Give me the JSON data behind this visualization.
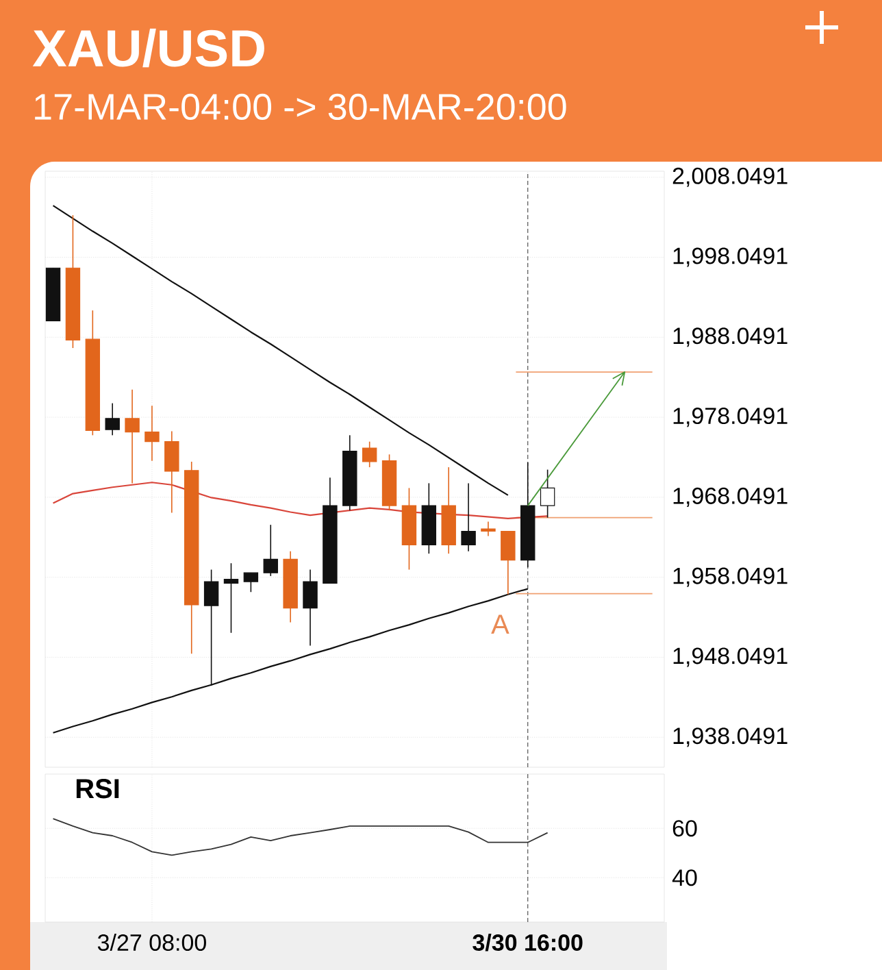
{
  "chart_data": [
    {
      "type": "candlestick",
      "title": "XAU/USD",
      "subtitle": "17-MAR-04:00 -> 30-MAR-20:00",
      "categories": [
        null,
        null,
        null,
        null,
        null,
        "3/27 08:00",
        null,
        null,
        null,
        null,
        null,
        null,
        null,
        null,
        null,
        null,
        null,
        null,
        null,
        null,
        null,
        null,
        null,
        null,
        "3/30 16:00",
        null
      ],
      "ohlc": [
        [
          1990.1,
          1996.7,
          1990.1,
          1996.7
        ],
        [
          1996.7,
          2003.3,
          1986.7,
          1987.7
        ],
        [
          1987.8,
          1991.4,
          1975.8,
          1976.4
        ],
        [
          1976.5,
          1979.8,
          1975.8,
          1977.9
        ],
        [
          1977.9,
          1981.5,
          1969.8,
          1976.2
        ],
        [
          1976.2,
          1979.5,
          1972.6,
          1975.0
        ],
        [
          1975.0,
          1976.3,
          1966.1,
          1971.3
        ],
        [
          1971.4,
          1972.5,
          1948.5,
          1954.6
        ],
        [
          1954.5,
          1959.0,
          1944.5,
          1957.5
        ],
        [
          1957.3,
          1959.8,
          1951.1,
          1957.8
        ],
        [
          1957.5,
          1958.6,
          1956.2,
          1958.6
        ],
        [
          1958.6,
          1964.6,
          1958.2,
          1960.3
        ],
        [
          1960.3,
          1961.3,
          1952.4,
          1954.2
        ],
        [
          1954.2,
          1959.0,
          1949.5,
          1957.5
        ],
        [
          1957.3,
          1970.5,
          1957.3,
          1967.0
        ],
        [
          1967.0,
          1975.8,
          1966.4,
          1973.8
        ],
        [
          1974.2,
          1975.0,
          1971.8,
          1972.5
        ],
        [
          1972.6,
          1973.4,
          1966.4,
          1967.0
        ],
        [
          1967.0,
          1969.2,
          1959.0,
          1962.1
        ],
        [
          1962.1,
          1969.8,
          1961.0,
          1967.0
        ],
        [
          1967.0,
          1971.8,
          1961.0,
          1962.1
        ],
        [
          1962.1,
          1969.8,
          1961.3,
          1963.8
        ],
        [
          1964.1,
          1965.0,
          1963.2,
          1963.8
        ],
        [
          1963.8,
          1963.8,
          1955.9,
          1960.2
        ],
        [
          1960.2,
          1972.4,
          1959.3,
          1967.0
        ],
        [
          1967.0,
          1971.5,
          1965.5,
          1969.2
        ]
      ],
      "colors": [
        "#111111",
        "#e2661c",
        "#e2661c",
        "#111111",
        "#e2661c",
        "#e2661c",
        "#e2661c",
        "#e2661c",
        "#111111",
        "#111111",
        "#111111",
        "#111111",
        "#e2661c",
        "#111111",
        "#111111",
        "#111111",
        "#e2661c",
        "#e2661c",
        "#e2661c",
        "#111111",
        "#e2661c",
        "#111111",
        "#e2661c",
        "#e2661c",
        "#111111",
        "#ffffff"
      ],
      "series": [
        {
          "type": "line",
          "color": "#111111",
          "values": [
            2004.5,
            2002.9,
            2001.3,
            1999.8,
            1998.2,
            1996.6,
            1995.0,
            1993.5,
            1991.9,
            1990.3,
            1988.7,
            1987.2,
            1985.6,
            1984.0,
            1982.4,
            1980.9,
            1979.3,
            1977.7,
            1976.1,
            1974.6,
            1973.0,
            1971.4,
            1969.8,
            1968.3,
            null,
            null
          ]
        },
        {
          "type": "line",
          "color": "#111111",
          "values": [
            1938.6,
            1939.4,
            1940.1,
            1940.9,
            1941.6,
            1942.4,
            1943.1,
            1943.9,
            1944.6,
            1945.4,
            1946.1,
            1946.9,
            1947.6,
            1948.4,
            1949.1,
            1949.9,
            1950.6,
            1951.4,
            1952.1,
            1952.9,
            1953.6,
            1954.4,
            1955.1,
            1955.9,
            1956.6,
            null
          ]
        },
        {
          "type": "line",
          "color": "#d9453a",
          "values": [
            1967.3,
            1968.5,
            1968.9,
            1969.3,
            1969.6,
            1969.9,
            1969.6,
            null,
            1968.0,
            1967.6,
            1967.1,
            1966.7,
            1966.2,
            1965.8,
            null,
            1966.4,
            1966.7,
            1966.5,
            1966.2,
            null,
            1965.9,
            1965.8,
            1965.6,
            1965.4,
            null,
            1965.7
          ]
        }
      ],
      "ylim": [
        1934.3,
        2008.8
      ],
      "yticks": [
        {
          "value": 1938.0491,
          "label": "1,938.0491"
        },
        {
          "value": 1948.0491,
          "label": "1,948.0491"
        },
        {
          "value": 1958.0491,
          "label": "1,958.0491"
        },
        {
          "value": 1968.0491,
          "label": "1,968.0491"
        },
        {
          "value": 1978.0491,
          "label": "1,978.0491"
        },
        {
          "value": 1988.0491,
          "label": "1,988.0491"
        },
        {
          "value": 1998.0491,
          "label": "1,998.0491"
        },
        {
          "value": 2008.0491,
          "label": "2,008.0491"
        }
      ],
      "grid": true,
      "tick_labels": "y",
      "ref_lines": [
        {
          "axis": "x",
          "value": "3/30 16:00",
          "line_style": "dashed",
          "color": "#555555"
        },
        {
          "axis": "y",
          "value": 1983.7,
          "color": "#f0a070"
        },
        {
          "axis": "y",
          "value": 1965.5,
          "color": "#f0a070"
        },
        {
          "axis": "y",
          "value": 1956.0,
          "color": "#f0a070"
        }
      ],
      "annotations": [
        "A"
      ]
    },
    {
      "type": "line",
      "title": "RSI",
      "color": "#333333",
      "categories": [
        null,
        null,
        null,
        null,
        null,
        "3/27 08:00",
        null,
        null,
        null,
        null,
        null,
        null,
        null,
        null,
        null,
        null,
        null,
        null,
        null,
        null,
        null,
        null,
        null,
        null,
        "3/30 16:00",
        null
      ],
      "values": [
        63.9,
        60.9,
        58.2,
        57.0,
        54.3,
        50.5,
        49.1,
        50.5,
        51.6,
        53.5,
        56.5,
        55.0,
        57.0,
        58.2,
        59.5,
        60.9,
        60.9,
        60.9,
        60.9,
        60.9,
        60.9,
        58.5,
        54.3,
        54.3,
        54.3,
        58.2
      ],
      "ylim": [
        22,
        82
      ],
      "yticks": [
        40,
        60
      ],
      "grid": true,
      "ref_lines": [
        {
          "axis": "x",
          "value": "3/30 16:00",
          "line_style": "dashed",
          "color": "#555555"
        }
      ]
    }
  ]
}
